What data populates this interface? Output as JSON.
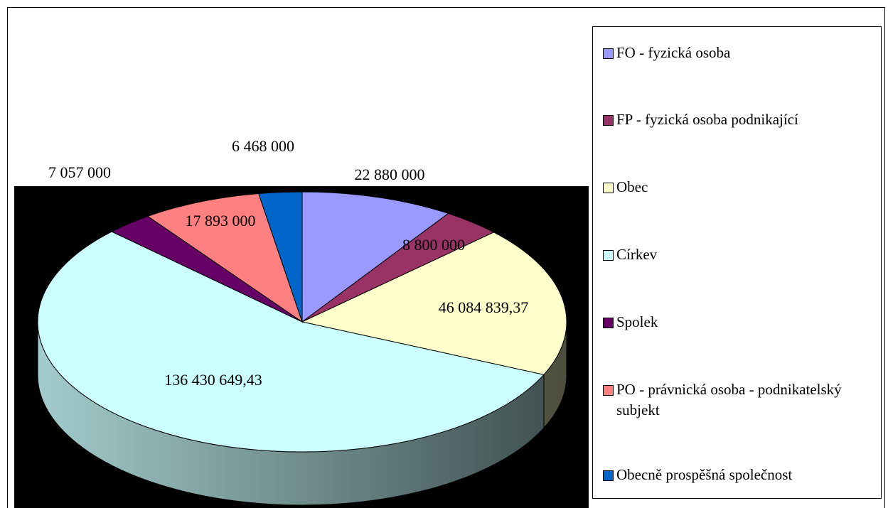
{
  "chart_data": {
    "type": "pie",
    "categories": [
      "FO - fyzická osoba",
      "FP - fyzická osoba podnikající",
      "Obec",
      "Církev",
      "Spolek",
      "PO - právnická osoba - podnikatelský subjekt",
      "Obecně prospěšná společnost"
    ],
    "values": [
      22880000,
      8800000,
      46084839.37,
      136430649.43,
      7057000,
      17893000,
      6468000
    ],
    "value_labels": [
      "22 880 000",
      "8 800 000",
      "46 084 839,37",
      "136 430 649,43",
      "7 057 000",
      "17 893 000",
      "6 468 000"
    ],
    "colors": [
      "#9999ff",
      "#993366",
      "#ffffcc",
      "#ccffff",
      "#660066",
      "#ff8080",
      "#0066cc"
    ],
    "legend": "right"
  }
}
